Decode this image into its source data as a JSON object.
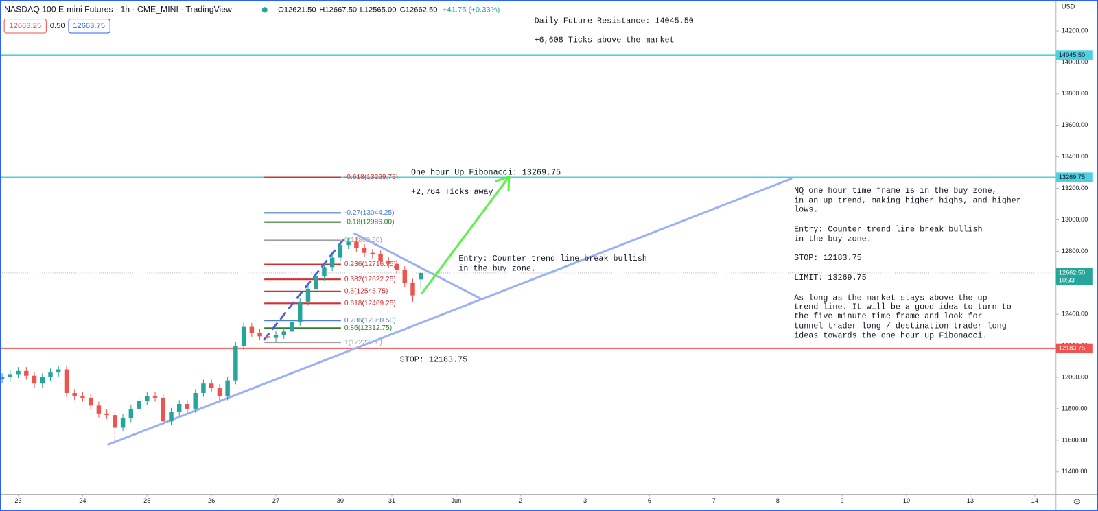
{
  "chart_data": {
    "type": "candlestick",
    "title": "NASDAQ 100 E-mini Futures · 1h · CME_MINI · TradingView",
    "ohlc_labels": [
      "O12621.50",
      "H12667.50",
      "L12565.00",
      "C12662.50"
    ],
    "change_label": "+41.75 (+0.33%)",
    "bid_label": "12663.25",
    "spread_label": "0.50",
    "ask_label": "12663.75",
    "currency": "USD",
    "up_color": "#26a69a",
    "down_color": "#ef5350",
    "x": [
      -0.25,
      -0.125,
      0,
      0.125,
      0.25,
      0.375,
      0.5,
      0.625,
      0.75,
      0.875,
      1,
      1.125,
      1.25,
      1.375,
      1.5,
      1.625,
      1.75,
      1.875,
      2,
      2.125,
      2.25,
      2.375,
      2.5,
      2.625,
      2.75,
      2.875,
      3,
      3.125,
      3.25,
      3.375,
      3.5,
      3.625,
      3.75,
      3.875,
      4,
      4.125,
      4.25,
      4.375,
      4.5,
      4.625,
      4.75,
      4.875,
      5,
      5.125,
      5.25,
      5.375,
      5.5,
      5.625,
      5.75,
      5.875,
      6,
      6.125,
      6.25
    ],
    "open": [
      11990,
      12000,
      12020,
      12040,
      12010,
      11960,
      12000,
      12030,
      12050,
      11900,
      11880,
      11870,
      11820,
      11770,
      11760,
      11680,
      11740,
      11800,
      11850,
      11880,
      11870,
      11720,
      11780,
      11830,
      11800,
      11900,
      11960,
      11930,
      11880,
      11980,
      12200,
      12320,
      12280,
      12260,
      12250,
      12270,
      12290,
      12350,
      12480,
      12560,
      12640,
      12700,
      12760,
      12840,
      12860,
      12820,
      12790,
      12780,
      12740,
      12720,
      12680,
      12600,
      12621.5
    ],
    "high": [
      12025,
      12045,
      12065,
      12065,
      12035,
      12025,
      12055,
      12075,
      12075,
      11925,
      11905,
      11895,
      11845,
      11795,
      11785,
      11765,
      11825,
      11875,
      11905,
      11905,
      11895,
      11805,
      11855,
      11855,
      11925,
      11985,
      11985,
      11955,
      12005,
      12225,
      12345,
      12345,
      12305,
      12285,
      12295,
      12315,
      12375,
      12505,
      12585,
      12665,
      12725,
      12785,
      12865,
      12885,
      12885,
      12845,
      12815,
      12805,
      12765,
      12745,
      12705,
      12625,
      12667.5
    ],
    "low": [
      11965,
      11975,
      11995,
      11985,
      11935,
      11935,
      11975,
      12005,
      11875,
      11855,
      11845,
      11795,
      11745,
      11735,
      11580,
      11655,
      11715,
      11775,
      11825,
      11845,
      11695,
      11695,
      11755,
      11775,
      11775,
      11875,
      11905,
      11855,
      11855,
      11955,
      12175,
      12255,
      12235,
      12225,
      12225,
      12245,
      12265,
      12325,
      12455,
      12535,
      12615,
      12675,
      12735,
      12815,
      12795,
      12765,
      12755,
      12715,
      12695,
      12655,
      12575,
      12480,
      12565
    ],
    "close": [
      12000,
      12020,
      12040,
      12010,
      11960,
      12000,
      12030,
      12050,
      11900,
      11880,
      11870,
      11820,
      11770,
      11760,
      11680,
      11740,
      11800,
      11850,
      11880,
      11870,
      11720,
      11780,
      11830,
      11800,
      11900,
      11960,
      11930,
      11880,
      11980,
      12200,
      12320,
      12280,
      12260,
      12250,
      12270,
      12290,
      12350,
      12480,
      12560,
      12640,
      12700,
      12760,
      12840,
      12860,
      12820,
      12790,
      12780,
      12740,
      12720,
      12680,
      12600,
      12520,
      12662.5
    ],
    "xlim": [
      -0.283,
      16.11
    ],
    "xticks": [
      {
        "value": 0,
        "label": "23"
      },
      {
        "value": 1,
        "label": "24"
      },
      {
        "value": 2,
        "label": "25"
      },
      {
        "value": 3,
        "label": "26"
      },
      {
        "value": 4,
        "label": "27"
      },
      {
        "value": 5,
        "label": "30"
      },
      {
        "value": 5.8,
        "label": "31"
      },
      {
        "value": 6.8,
        "label": "Jun"
      },
      {
        "value": 7.8,
        "label": "2"
      },
      {
        "value": 8.8,
        "label": "3"
      },
      {
        "value": 9.8,
        "label": "6"
      },
      {
        "value": 10.8,
        "label": "7"
      },
      {
        "value": 11.79,
        "label": "8"
      },
      {
        "value": 12.79,
        "label": "9"
      },
      {
        "value": 13.79,
        "label": "10"
      },
      {
        "value": 14.78,
        "label": "13"
      },
      {
        "value": 15.78,
        "label": "14"
      }
    ],
    "ylim": [
      11257.5,
      14395.9
    ],
    "yticks": [
      {
        "value": 11400,
        "label": "11400.00"
      },
      {
        "value": 11600,
        "label": "11600.00"
      },
      {
        "value": 11800,
        "label": "11800.00"
      },
      {
        "value": 12000,
        "label": "12000.00"
      },
      {
        "value": 12200,
        "label": "12200.00"
      },
      {
        "value": 12400,
        "label": "12400.00"
      },
      {
        "value": 12600,
        "label": "12600.00"
      },
      {
        "value": 12800,
        "label": "12800.00"
      },
      {
        "value": 13000,
        "label": "13000.00"
      },
      {
        "value": 13200,
        "label": "13200.00"
      },
      {
        "value": 13400,
        "label": "13400.00"
      },
      {
        "value": 13600,
        "label": "13600.00"
      },
      {
        "value": 13800,
        "label": "13800.00"
      },
      {
        "value": 14000,
        "label": "14000.00"
      },
      {
        "value": 14200,
        "label": "14200.00"
      }
    ],
    "levels": [
      {
        "value": 14045.5,
        "label": "14045.50",
        "color": "#4dd0e1"
      },
      {
        "value": 13269.75,
        "label": "13269.75",
        "color": "#4dd0e1"
      },
      {
        "value": 12183.75,
        "label": "12183.75",
        "color": "#ef5350"
      }
    ],
    "last_price": {
      "value": 12662.5,
      "label": "12662.50",
      "countdown": "10:33",
      "color": "#26a69a"
    },
    "fib_x": [
      3.82,
      5.01
    ],
    "fib_levels": [
      {
        "label": "-0.618(13269.75)",
        "value": 13269.75,
        "color": "#d32f2f"
      },
      {
        "label": "-0.27(13044.25)",
        "value": 13044.25,
        "color": "#4a7fd4"
      },
      {
        "label": "-0.18(12986.00)",
        "value": 12986,
        "color": "#2e7d32"
      },
      {
        "label": "0(12869.50)",
        "value": 12869.5,
        "color": "#9e9e9e"
      },
      {
        "label": "0.236(12716.75)",
        "value": 12716.75,
        "color": "#d32f2f"
      },
      {
        "label": "0.382(12622.25)",
        "value": 12622.25,
        "color": "#d32f2f"
      },
      {
        "label": "0.5(12545.75)",
        "value": 12545.75,
        "color": "#d32f2f"
      },
      {
        "label": "0.618(12469.25)",
        "value": 12469.25,
        "color": "#d32f2f"
      },
      {
        "label": "0.786(12360.50)",
        "value": 12360.5,
        "color": "#4a7fd4"
      },
      {
        "label": "0.86(12312.75)",
        "value": 12312.75,
        "color": "#2e7d32"
      },
      {
        "label": "1(12222.00)",
        "value": 12222,
        "color": "#9e9e9e"
      }
    ],
    "trend_lines": [
      {
        "color": "#9bb1f5",
        "x": [
          1.4,
          12.0
        ],
        "y": [
          11573,
          13261
        ]
      },
      {
        "color": "#9bb1f5",
        "x": [
          5.22,
          7.2
        ],
        "y": [
          12913,
          12495
        ]
      },
      {
        "color": "#5cf04a",
        "x": [
          6.27,
          7.62
        ],
        "y": [
          12535,
          13274
        ],
        "arrow": true
      },
      {
        "color": "#4a5fe8",
        "x": [
          3.82,
          5.04
        ],
        "y": [
          12240,
          12870
        ],
        "dashed": true
      }
    ],
    "annotations": [
      "Daily Future Resistance: 14045.50",
      "+6,608 Ticks above the market",
      "One hour Up Fibonacci: 13269.75",
      "+2,764 Ticks away",
      "Entry: Counter trend line break bullish",
      "in the buy zone.",
      "STOP: 12183.75",
      "NQ one hour time frame is in the buy zone,",
      "in an up trend, making higher highs, and higher",
      "lows.",
      "Entry: Counter trend line break bullish",
      "in the buy zone.",
      "STOP: 12183.75",
      "LIMIT: 13269.75",
      "As long as the market stays above the up",
      "trend line. It will be a good idea to turn to",
      "the five minute time frame and look for",
      "tunnel trader long / destination trader long",
      "ideas towards the one hour up Fibonacci."
    ]
  }
}
